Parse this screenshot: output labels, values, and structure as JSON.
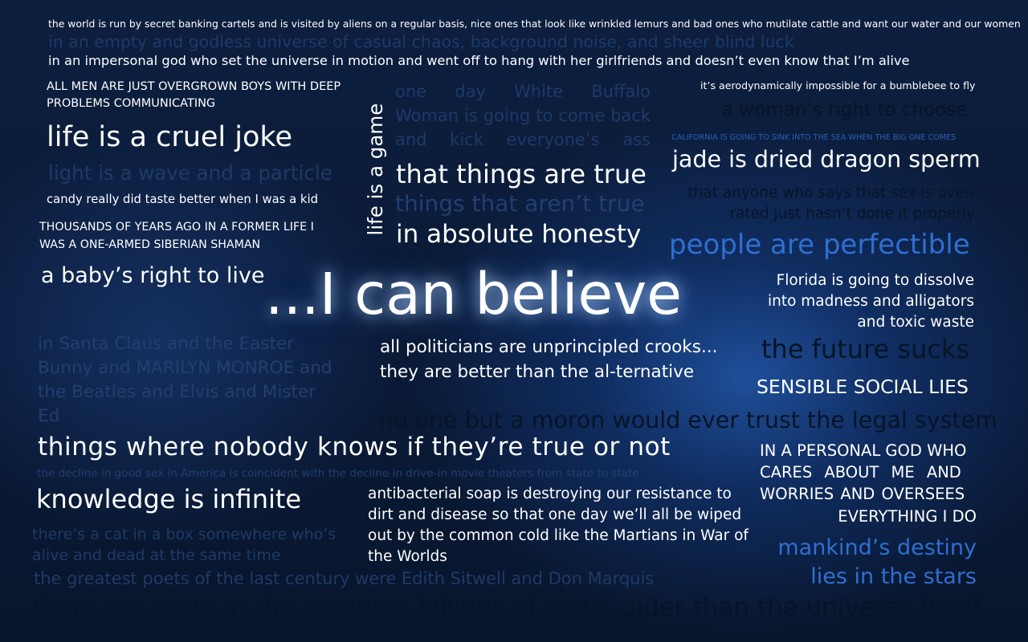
{
  "phrases": {
    "banking": "the world is run by secret banking cartels and is visited by aliens on a regular basis, nice ones that look like wrinkled lemurs and bad ones who mutilate cattle and want our water and our women",
    "empty_universe": "in an empty and godless universe of casual chaos, background noise, and sheer blind luck",
    "impersonal_god": "in an impersonal god who set the universe in motion and went off to hang with her girlfriends and doesn’t even know that I’m alive",
    "all_men": "ALL MEN ARE JUST OVERGROWN BOYS WITH DEEP PROBLEMS COMMUNICATING",
    "buffalo": "one day White Buffalo Woman is going to come back and kick everyone’s ass",
    "bumblebee": "it’s aerodynamically impossible for a bumblebee to fly",
    "womans_right": "a woman’s right to choose",
    "cruel_joke": "life is a cruel joke",
    "game": "life is a game",
    "california": "CALIFORNIA IS GOING TO SINK INTO THE SEA WHEN THE BIG ONE COMES",
    "light_wave": "light is a wave and a particle",
    "things_true": "that things are true",
    "jade": "jade is dried dragon sperm",
    "candy": "candy really did taste better when I was a kid",
    "not_true": "things that aren’t true",
    "sex_overrated_1": "that anyone who says that sex is over-",
    "sex_overrated_2": "rated just hasn’t done it properly",
    "shaman": "THOUSANDS OF YEARS AGO IN A FORMER LIFE I WAS A ONE-ARMED SIBERIAN SHAMAN",
    "honesty": "in absolute honesty",
    "perfectible": "people are perfectible",
    "babys_right": "a baby’s right to live",
    "hero": "...I can believe",
    "florida": "Florida is going to dissolve into madness and alligators and toxic waste",
    "santa": "in Santa Claus and the Easter Bunny and MARILYN MONROE and the Beatles and Elvis and Mister Ed",
    "politicians": "all politicians are unprincipled crooks... they are better than the al-ternative",
    "future_sucks": "the future sucks",
    "social_lies": "SENSIBLE SOCIAL LIES",
    "moron": "no one but a moron would ever trust the legal system",
    "nobody_knows": "things where nobody knows if they’re true or not",
    "personal_god_1": "IN A PERSONAL GOD WHO",
    "personal_god_2": "CARES ABOUT ME AND",
    "personal_god_3": "WORRIES AND OVERSEES",
    "personal_god_4": "EVERYTHING I DO",
    "drive_in": "the decline in good sex in America is coincident with the decline in drive-in movie theaters from state to state",
    "knowledge": "knowledge is infinite",
    "antibacterial": "antibacterial soap is destroying our resistance to dirt and disease so that one day we’ll all be wiped out by the common cold like the Martians in War of the Worlds",
    "cat_box": "there’s a cat in a box somewhere who’s alive and dead at the same time",
    "destiny_1": "mankind’s destiny",
    "destiny_2": "lies in the stars",
    "poets": "the greatest poets of the last century were Edith Sitwell and Don Marquis",
    "stars_older": "there are stars in the universe billions of years older than the universe itself"
  },
  "colors": {
    "background": "#0d1f3f",
    "glow": "#1f4f9a",
    "accent_blue": "#2f6fd1"
  }
}
